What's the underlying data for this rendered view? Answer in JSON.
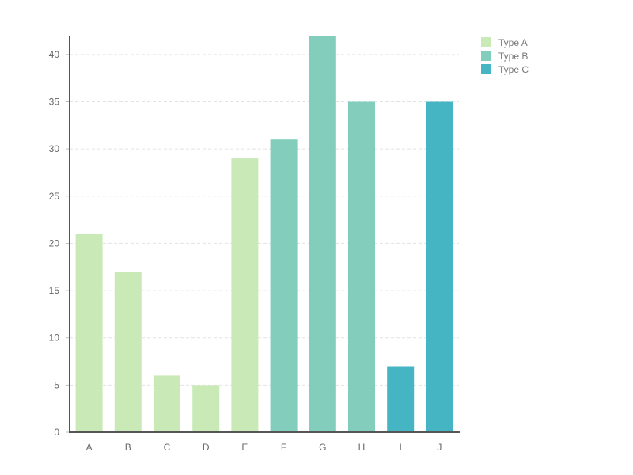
{
  "chart_data": {
    "type": "bar",
    "title": "",
    "xlabel": "",
    "ylabel": "",
    "categories": [
      "A",
      "B",
      "C",
      "D",
      "E",
      "F",
      "G",
      "H",
      "I",
      "J"
    ],
    "values": [
      21,
      17,
      6,
      5,
      29,
      31,
      42,
      35,
      7,
      35
    ],
    "groups": [
      "Type A",
      "Type A",
      "Type A",
      "Type A",
      "Type A",
      "Type B",
      "Type B",
      "Type B",
      "Type C",
      "Type C"
    ],
    "ylim": [
      0,
      42
    ],
    "yticks": [
      0,
      5,
      10,
      15,
      20,
      25,
      30,
      35,
      40
    ],
    "grid": true,
    "legend_position": "top-right",
    "legend": [
      {
        "name": "Type A",
        "color": "#c9e9b7"
      },
      {
        "name": "Type B",
        "color": "#82cdbb"
      },
      {
        "name": "Type C",
        "color": "#45b4c3"
      }
    ]
  }
}
